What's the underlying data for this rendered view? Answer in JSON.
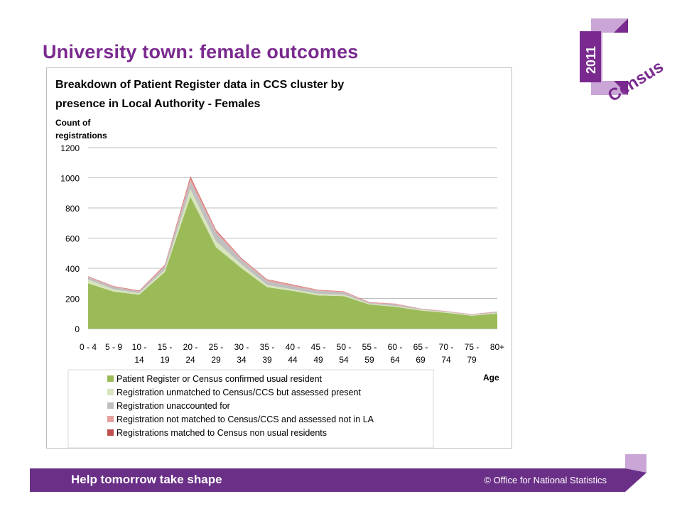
{
  "slide": {
    "title": "University town: female outcomes"
  },
  "logo": {
    "year": "2011",
    "word": "Census",
    "letter": "C"
  },
  "footer": {
    "slogan": "Help tomorrow take shape",
    "copyright": "© Office for National Statistics"
  },
  "colors": {
    "brand_purple": "#7a2a8e",
    "footer_purple": "#6a2f86",
    "logo_light": "#c9a6d6"
  },
  "chart_data": {
    "type": "area",
    "stacked": true,
    "title_lines": [
      "Breakdown of Patient Register data in CCS cluster by",
      "presence in Local Authority - Females"
    ],
    "ylabel_lines": [
      "Count of",
      "registrations"
    ],
    "xlabel": "Age",
    "ylim": [
      0,
      1200
    ],
    "yticks": [
      0,
      200,
      400,
      600,
      800,
      1000,
      1200
    ],
    "grid": true,
    "legend_position": "bottom",
    "categories": [
      [
        "0 - 4",
        ""
      ],
      [
        "5 - 9",
        ""
      ],
      [
        "10 -",
        "14"
      ],
      [
        "15 -",
        "19"
      ],
      [
        "20 -",
        "24"
      ],
      [
        "25 -",
        "29"
      ],
      [
        "30 -",
        "34"
      ],
      [
        "35 -",
        "39"
      ],
      [
        "40 -",
        "44"
      ],
      [
        "45 -",
        "49"
      ],
      [
        "50 -",
        "54"
      ],
      [
        "55 -",
        "59"
      ],
      [
        "60 -",
        "64"
      ],
      [
        "65 -",
        "69"
      ],
      [
        "70 -",
        "74"
      ],
      [
        "75 -",
        "79"
      ],
      [
        "80+",
        ""
      ]
    ],
    "series": [
      {
        "name": "Patient Register or Census confirmed usual resident",
        "color": "#9bbb59",
        "values": [
          300,
          245,
          225,
          375,
          875,
          540,
          400,
          275,
          250,
          220,
          215,
          160,
          145,
          120,
          105,
          85,
          100
        ]
      },
      {
        "name": "Registration unmatched to Census/CCS but assessed present",
        "color": "#d7e4bd",
        "values": [
          25,
          15,
          10,
          15,
          50,
          40,
          25,
          15,
          10,
          10,
          10,
          5,
          5,
          5,
          5,
          5,
          5
        ]
      },
      {
        "name": "Registration unaccounted for",
        "color": "#bfbfbf",
        "values": [
          15,
          15,
          10,
          20,
          50,
          55,
          30,
          25,
          20,
          20,
          15,
          5,
          10,
          5,
          3,
          3,
          5
        ]
      },
      {
        "name": "Registration not matched to Census/CCS and assessed not in LA",
        "color": "#e6a0a0",
        "values": [
          5,
          5,
          5,
          10,
          25,
          15,
          10,
          10,
          10,
          5,
          5,
          5,
          5,
          2,
          2,
          2,
          2
        ]
      },
      {
        "name": "Registrations matched to Census non usual residents",
        "color": "#c0504d",
        "values": [
          2,
          2,
          2,
          3,
          10,
          5,
          3,
          2,
          2,
          2,
          2,
          1,
          1,
          1,
          1,
          1,
          1
        ]
      }
    ]
  }
}
